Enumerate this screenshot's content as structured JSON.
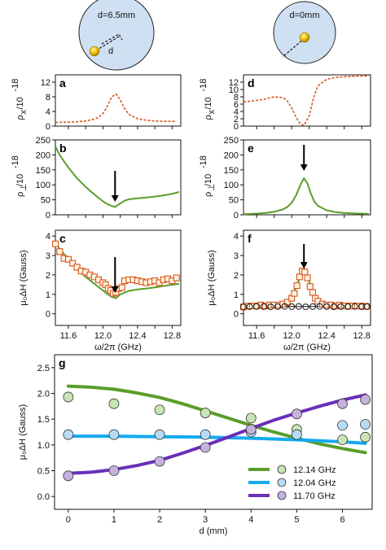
{
  "colors": {
    "green": "#5a9e2a",
    "orange": "#d9541a",
    "square_edge": "#d9541a",
    "square_fill": "#fff3e2",
    "blue": "#14aaf0",
    "purple": "#6a2fb8",
    "disk_fill": "#cfe0f3",
    "sphere": "#f2c40c",
    "black": "#111111"
  },
  "icons": [
    "disk-diagram-offset",
    "disk-diagram-center",
    "down-arrow-icon"
  ],
  "disks": [
    {
      "label": "d=6.5mm",
      "sublabel": "d"
    },
    {
      "label": "d=0mm"
    }
  ],
  "chart_data": [
    {
      "id": "a",
      "panel_label": "a",
      "type": "line",
      "line_style": "dashed",
      "color": "orange",
      "ylabel_main": "ρ",
      "ylabel_sub": "x",
      "ylabel_tail": "/10",
      "ylabel_exp": "-18",
      "xlim": [
        11.45,
        12.9
      ],
      "ylim": [
        0,
        14
      ],
      "yticks": [
        {
          "v": 0,
          "label": "0"
        },
        {
          "v": 4,
          "label": "4"
        },
        {
          "v": 8,
          "label": "8"
        },
        {
          "v": 12,
          "label": "12"
        }
      ],
      "xticks": [
        11.6,
        11.8,
        12.0,
        12.2,
        12.4,
        12.6,
        12.8
      ],
      "series": [
        {
          "x": [
            11.45,
            11.6,
            11.7,
            11.8,
            11.9,
            11.95,
            12.0,
            12.05,
            12.1,
            12.15,
            12.2,
            12.25,
            12.3,
            12.4,
            12.5,
            12.6,
            12.7,
            12.85
          ],
          "y": [
            1.0,
            1.1,
            1.2,
            1.4,
            1.9,
            2.4,
            3.4,
            5.4,
            7.9,
            8.8,
            7.2,
            4.8,
            3.2,
            2.0,
            1.6,
            1.4,
            1.3,
            1.3
          ]
        }
      ]
    },
    {
      "id": "b",
      "panel_label": "b",
      "type": "line",
      "color": "green",
      "ylabel_main": "ρ",
      "ylabel_sub": "⊥",
      "ylabel_tail": "/10",
      "ylabel_exp": "-18",
      "xlim": [
        11.45,
        12.9
      ],
      "ylim": [
        0,
        250
      ],
      "yticks": [
        {
          "v": 0,
          "label": "0"
        },
        {
          "v": 50,
          "label": "50"
        },
        {
          "v": 100,
          "label": "100"
        },
        {
          "v": 150,
          "label": "150"
        },
        {
          "v": 200,
          "label": "200"
        },
        {
          "v": 250,
          "label": "250"
        }
      ],
      "xticks": [
        11.6,
        11.8,
        12.0,
        12.2,
        12.4,
        12.6,
        12.8
      ],
      "arrow_x": 12.14,
      "series": [
        {
          "x": [
            11.45,
            11.5,
            11.6,
            11.7,
            11.8,
            11.9,
            12.0,
            12.05,
            12.1,
            12.14,
            12.2,
            12.25,
            12.3,
            12.4,
            12.5,
            12.6,
            12.7,
            12.8,
            12.88
          ],
          "y": [
            228,
            200,
            158,
            122,
            93,
            68,
            45,
            36,
            30,
            26,
            38,
            47,
            52,
            55,
            58,
            61,
            65,
            70,
            76
          ]
        }
      ]
    },
    {
      "id": "c",
      "panel_label": "c",
      "type": "line+scatter",
      "ylabel": "μ₀ΔH (Gauss)",
      "xlabel": "ω/2π (GHz)",
      "xlim": [
        11.45,
        12.9
      ],
      "ylim": [
        -0.6,
        4.3
      ],
      "yticks": [
        {
          "v": 0,
          "label": "0"
        },
        {
          "v": 1,
          "label": "1"
        },
        {
          "v": 2,
          "label": "2"
        },
        {
          "v": 3,
          "label": "3"
        },
        {
          "v": 4,
          "label": "4"
        }
      ],
      "xticks": [
        {
          "v": 11.6,
          "label": "11.6"
        },
        {
          "v": 11.8,
          "label": ""
        },
        {
          "v": 12.0,
          "label": "12.0"
        },
        {
          "v": 12.2,
          "label": ""
        },
        {
          "v": 12.4,
          "label": "12.4"
        },
        {
          "v": 12.6,
          "label": ""
        },
        {
          "v": 12.8,
          "label": "12.8"
        }
      ],
      "arrow_x": 12.14,
      "series": [
        {
          "kind": "line",
          "color": "green",
          "x": [
            11.45,
            11.5,
            11.6,
            11.7,
            11.8,
            11.9,
            12.0,
            12.05,
            12.1,
            12.15,
            12.2,
            12.3,
            12.4,
            12.5,
            12.6,
            12.7,
            12.8,
            12.88
          ],
          "y": [
            3.65,
            3.35,
            2.8,
            2.3,
            1.9,
            1.55,
            1.2,
            1.02,
            0.88,
            0.8,
            1.0,
            1.18,
            1.25,
            1.3,
            1.36,
            1.43,
            1.5,
            1.55
          ]
        },
        {
          "kind": "squares",
          "x": [
            11.45,
            11.5,
            11.55,
            11.6,
            11.65,
            11.7,
            11.75,
            11.8,
            11.85,
            11.9,
            11.95,
            12.0,
            12.03,
            12.06,
            12.09,
            12.12,
            12.15,
            12.18,
            12.22,
            12.25,
            12.3,
            12.35,
            12.4,
            12.45,
            12.5,
            12.55,
            12.6,
            12.65,
            12.7,
            12.75,
            12.8,
            12.85
          ],
          "y": [
            3.6,
            3.2,
            2.85,
            2.8,
            2.6,
            2.4,
            2.2,
            2.15,
            2.0,
            1.9,
            1.75,
            1.6,
            1.5,
            1.3,
            1.2,
            1.05,
            1.1,
            1.3,
            1.35,
            1.7,
            1.75,
            1.75,
            1.7,
            1.65,
            1.6,
            1.65,
            1.7,
            1.6,
            1.75,
            1.8,
            1.7,
            1.85
          ]
        }
      ]
    },
    {
      "id": "d",
      "panel_label": "d",
      "type": "line",
      "line_style": "dashed",
      "color": "orange",
      "ylabel_main": "ρ",
      "ylabel_sub": "x",
      "ylabel_tail": "/10",
      "ylabel_exp": "-18",
      "xlim": [
        11.45,
        12.9
      ],
      "ylim": [
        0,
        14
      ],
      "yticks": [
        {
          "v": 0,
          "label": "0"
        },
        {
          "v": 2,
          "label": "2"
        },
        {
          "v": 4,
          "label": "4"
        },
        {
          "v": 6,
          "label": "6"
        },
        {
          "v": 8,
          "label": "8"
        },
        {
          "v": 10,
          "label": "10"
        },
        {
          "v": 12,
          "label": "12"
        }
      ],
      "xticks": [
        11.6,
        11.8,
        12.0,
        12.2,
        12.4,
        12.6,
        12.8
      ],
      "series": [
        {
          "x": [
            11.45,
            11.6,
            11.7,
            11.8,
            11.9,
            11.95,
            12.0,
            12.05,
            12.1,
            12.14,
            12.2,
            12.25,
            12.3,
            12.4,
            12.5,
            12.6,
            12.7,
            12.88
          ],
          "y": [
            6.6,
            7.0,
            7.4,
            8.0,
            7.8,
            6.9,
            5.0,
            2.4,
            0.6,
            0.2,
            2.8,
            7.8,
            11.0,
            12.8,
            13.3,
            13.5,
            13.6,
            13.7
          ]
        }
      ]
    },
    {
      "id": "e",
      "panel_label": "e",
      "type": "line",
      "color": "green",
      "ylabel_main": "ρ",
      "ylabel_sub": "⊥",
      "ylabel_tail": "/10",
      "ylabel_exp": "-18",
      "xlim": [
        11.45,
        12.9
      ],
      "ylim": [
        0,
        250
      ],
      "yticks": [
        {
          "v": 0,
          "label": "0"
        },
        {
          "v": 50,
          "label": "50"
        },
        {
          "v": 100,
          "label": "100"
        },
        {
          "v": 150,
          "label": "150"
        },
        {
          "v": 200,
          "label": "200"
        },
        {
          "v": 250,
          "label": "250"
        }
      ],
      "xticks": [
        11.6,
        11.8,
        12.0,
        12.2,
        12.4,
        12.6,
        12.8
      ],
      "arrow_x": 12.14,
      "series": [
        {
          "x": [
            11.45,
            11.6,
            11.7,
            11.8,
            11.9,
            11.95,
            12.0,
            12.05,
            12.1,
            12.14,
            12.18,
            12.22,
            12.26,
            12.3,
            12.4,
            12.5,
            12.6,
            12.7,
            12.88
          ],
          "y": [
            2,
            4,
            6,
            10,
            18,
            26,
            40,
            65,
            100,
            122,
            105,
            70,
            44,
            30,
            15,
            9,
            6,
            5,
            3
          ]
        }
      ]
    },
    {
      "id": "f",
      "panel_label": "f",
      "type": "line+scatter",
      "ylabel": "μ₀ΔH (Gauss)",
      "xlabel": "ω/2π (GHz)",
      "xlim": [
        11.45,
        12.9
      ],
      "ylim": [
        -0.6,
        4.3
      ],
      "yticks": [
        {
          "v": 0,
          "label": "0"
        },
        {
          "v": 1,
          "label": "1"
        },
        {
          "v": 2,
          "label": "2"
        },
        {
          "v": 3,
          "label": "3"
        },
        {
          "v": 4,
          "label": "4"
        }
      ],
      "xticks": [
        {
          "v": 11.6,
          "label": "11.6"
        },
        {
          "v": 11.8,
          "label": ""
        },
        {
          "v": 12.0,
          "label": "12.0"
        },
        {
          "v": 12.2,
          "label": ""
        },
        {
          "v": 12.4,
          "label": "12.4"
        },
        {
          "v": 12.6,
          "label": ""
        },
        {
          "v": 12.8,
          "label": "12.8"
        }
      ],
      "arrow_x": 12.14,
      "series": [
        {
          "kind": "line",
          "color": "green",
          "x": [
            11.45,
            11.6,
            11.7,
            11.8,
            11.9,
            11.95,
            12.0,
            12.05,
            12.1,
            12.14,
            12.18,
            12.22,
            12.26,
            12.3,
            12.4,
            12.5,
            12.6,
            12.7,
            12.88
          ],
          "y": [
            0.38,
            0.4,
            0.42,
            0.45,
            0.55,
            0.65,
            0.9,
            1.35,
            1.95,
            2.2,
            1.95,
            1.4,
            0.95,
            0.7,
            0.5,
            0.44,
            0.41,
            0.4,
            0.38
          ]
        },
        {
          "kind": "line",
          "color": "black",
          "x": [
            11.45,
            12.88
          ],
          "y": [
            0.37,
            0.37
          ]
        },
        {
          "kind": "squares",
          "x": [
            11.45,
            11.5,
            11.55,
            11.6,
            11.65,
            11.7,
            11.75,
            11.8,
            11.85,
            11.9,
            11.95,
            12.0,
            12.03,
            12.06,
            12.09,
            12.12,
            12.15,
            12.18,
            12.21,
            12.24,
            12.27,
            12.3,
            12.35,
            12.4,
            12.45,
            12.5,
            12.55,
            12.6,
            12.65,
            12.7,
            12.75,
            12.8,
            12.85
          ],
          "y": [
            0.35,
            0.4,
            0.4,
            0.4,
            0.45,
            0.4,
            0.45,
            0.45,
            0.45,
            0.5,
            0.6,
            0.8,
            1.05,
            1.45,
            1.9,
            2.2,
            2.15,
            1.85,
            1.4,
            1.1,
            0.8,
            0.65,
            0.5,
            0.45,
            0.45,
            0.4,
            0.45,
            0.4,
            0.4,
            0.4,
            0.4,
            0.4,
            0.38
          ]
        },
        {
          "kind": "circles",
          "x": [
            11.45,
            11.52,
            11.6,
            11.68,
            11.76,
            11.84,
            11.92,
            12.0,
            12.08,
            12.16,
            12.24,
            12.32,
            12.4,
            12.48,
            12.56,
            12.64,
            12.72,
            12.8,
            12.86
          ],
          "y": [
            0.36,
            0.37,
            0.38,
            0.37,
            0.36,
            0.37,
            0.38,
            0.37,
            0.38,
            0.36,
            0.37,
            0.38,
            0.37,
            0.36,
            0.37,
            0.37,
            0.38,
            0.37,
            0.37
          ]
        }
      ]
    },
    {
      "id": "g",
      "panel_label": "g",
      "type": "line+scatter",
      "ylabel": "μ₀ΔH (Gauss)",
      "xlabel": "d (mm)",
      "xlim": [
        -0.3,
        6.65
      ],
      "ylim": [
        -0.25,
        2.75
      ],
      "yticks": [
        {
          "v": 0,
          "label": "0.0"
        },
        {
          "v": 0.5,
          "label": "0.5"
        },
        {
          "v": 1.0,
          "label": "1.0"
        },
        {
          "v": 1.5,
          "label": "1.5"
        },
        {
          "v": 2.0,
          "label": "2.0"
        },
        {
          "v": 2.5,
          "label": "2.5"
        }
      ],
      "xticks": [
        {
          "v": 0,
          "label": "0"
        },
        {
          "v": 1,
          "label": "1"
        },
        {
          "v": 2,
          "label": "2"
        },
        {
          "v": 3,
          "label": "3"
        },
        {
          "v": 4,
          "label": "4"
        },
        {
          "v": 5,
          "label": "5"
        },
        {
          "v": 6,
          "label": "6"
        }
      ],
      "legend_position": "bottom-right",
      "series": [
        {
          "name": "12.14 GHz",
          "color": "green",
          "fill": "#c8e5b6",
          "line_x": [
            0,
            0.5,
            1,
            1.5,
            2,
            2.5,
            3,
            3.5,
            4,
            4.5,
            5,
            5.5,
            6,
            6.5
          ],
          "line_y": [
            2.14,
            2.12,
            2.08,
            2.01,
            1.92,
            1.8,
            1.66,
            1.52,
            1.38,
            1.25,
            1.13,
            1.02,
            0.93,
            0.85
          ],
          "points_x": [
            0,
            1,
            2,
            3,
            4,
            5,
            6,
            6.5
          ],
          "points_y": [
            1.93,
            1.8,
            1.68,
            1.62,
            1.52,
            1.3,
            1.1,
            1.15
          ]
        },
        {
          "name": "12.04 GHz",
          "color": "blue",
          "fill": "#b7dcf5",
          "line_x": [
            0,
            1,
            2,
            3,
            4,
            5,
            6,
            6.5
          ],
          "line_y": [
            1.17,
            1.17,
            1.16,
            1.15,
            1.13,
            1.1,
            1.06,
            1.03
          ],
          "points_x": [
            0,
            1,
            2,
            3,
            4,
            5,
            6,
            6.5
          ],
          "points_y": [
            1.2,
            1.2,
            1.2,
            1.2,
            1.25,
            1.2,
            1.38,
            1.4
          ]
        },
        {
          "name": "11.70 GHz",
          "color": "purple",
          "fill": "#c6b1e0",
          "line_x": [
            0,
            0.5,
            1,
            1.5,
            2,
            2.5,
            3,
            3.5,
            4,
            4.5,
            5,
            5.5,
            6,
            6.5
          ],
          "line_y": [
            0.45,
            0.47,
            0.52,
            0.6,
            0.7,
            0.84,
            0.99,
            1.15,
            1.32,
            1.48,
            1.62,
            1.75,
            1.87,
            1.97
          ],
          "points_x": [
            0,
            1,
            2,
            3,
            4,
            5,
            6,
            6.5
          ],
          "points_y": [
            0.4,
            0.5,
            0.68,
            0.95,
            1.3,
            1.6,
            1.8,
            1.88
          ]
        }
      ]
    }
  ]
}
